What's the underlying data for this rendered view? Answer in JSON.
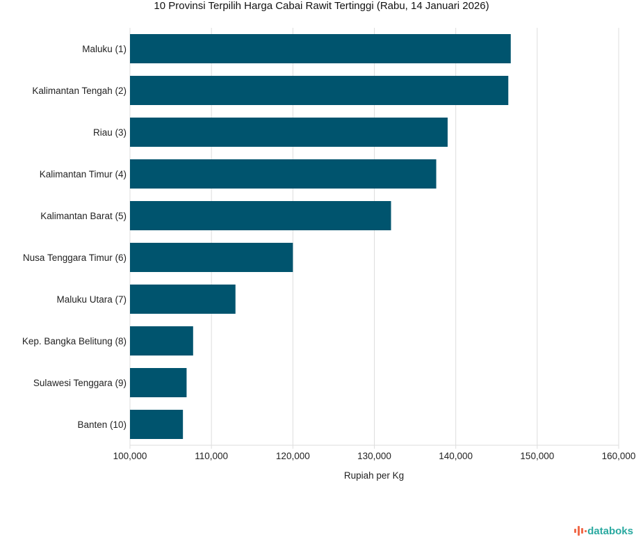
{
  "chart_data": {
    "type": "bar",
    "orientation": "horizontal",
    "title": "10 Provinsi Terpilih Harga Cabai Rawit Tertinggi (Rabu, 14 Januari 2026)",
    "xlabel": "Rupiah per Kg",
    "ylabel": "",
    "categories": [
      "Maluku (1)",
      "Kalimantan Tengah (2)",
      "Riau (3)",
      "Kalimantan Timur (4)",
      "Kalimantan Barat (5)",
      "Nusa Tenggara Timur (6)",
      "Maluku Utara (7)",
      "Kep. Bangka Belitung (8)",
      "Sulawesi Tenggara (9)",
      "Banten (10)"
    ],
    "values": [
      146750,
      146450,
      139000,
      137600,
      132050,
      120000,
      112950,
      107750,
      106950,
      106500
    ],
    "xlim": [
      100000,
      160000
    ],
    "xticks": [
      100000,
      110000,
      120000,
      130000,
      140000,
      150000,
      160000
    ],
    "xtick_labels": [
      "100,000",
      "110,000",
      "120,000",
      "130,000",
      "140,000",
      "150,000",
      "160,000"
    ],
    "grid": true,
    "bar_color": "#00546e",
    "grid_color": "#dddddd"
  },
  "brand": {
    "name": "databoks",
    "accent_color": "#2aa9a0",
    "icon_color": "#f06a4a"
  }
}
